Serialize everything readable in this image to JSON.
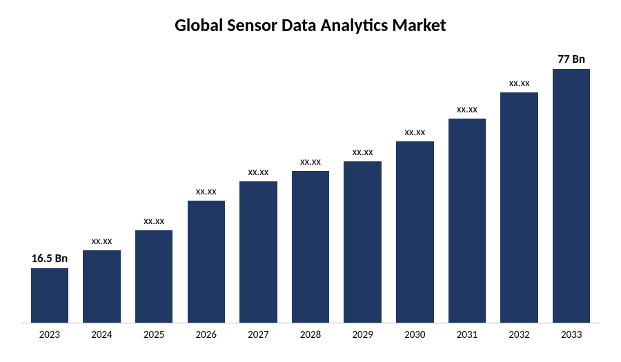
{
  "chart": {
    "type": "bar",
    "title": "Global Sensor Data Analytics Market",
    "title_fontsize": 26,
    "title_fontweight": 700,
    "title_color": "#000000",
    "background_color": "#ffffff",
    "axis_line_color": "#bfbfbf",
    "bar_color": "#1f3864",
    "bar_width_ratio": 0.72,
    "ylim": [
      0,
      85
    ],
    "label_fontsize": 15,
    "endpoint_label_fontsize": 17,
    "endpoint_label_fontweight": 700,
    "tick_fontsize": 15,
    "tick_color": "#000000",
    "categories": [
      "2023",
      "2024",
      "2025",
      "2026",
      "2027",
      "2028",
      "2029",
      "2030",
      "2031",
      "2032",
      "2033"
    ],
    "values": [
      16.5,
      22,
      28,
      37,
      43,
      46,
      49,
      55,
      62,
      70,
      77
    ],
    "value_labels": [
      "16.5 Bn",
      "xx.xx",
      "xx.xx",
      "xx.xx",
      "xx.xx",
      "xx.xx",
      "xx.xx",
      "xx.xx",
      "xx.xx",
      "xx.xx",
      "77 Bn"
    ],
    "label_is_endpoint": [
      true,
      false,
      false,
      false,
      false,
      false,
      false,
      false,
      false,
      false,
      true
    ]
  }
}
